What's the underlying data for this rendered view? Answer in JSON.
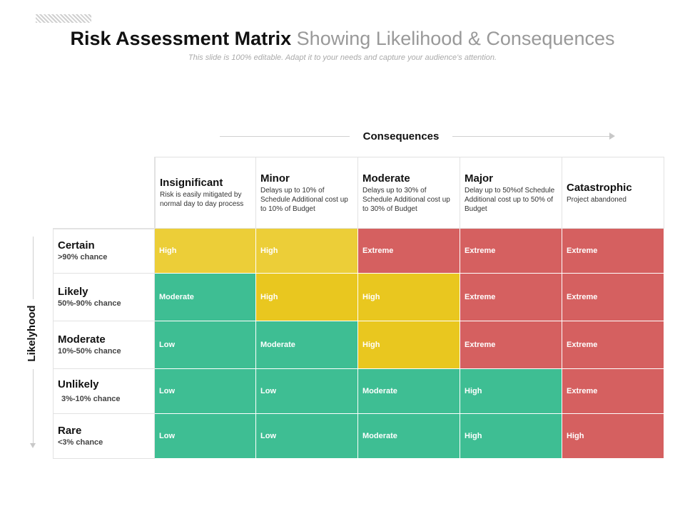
{
  "title": {
    "bold_part": "Risk Assessment Matrix",
    "light_part": "Showing Likelihood & Consequences"
  },
  "subtitle": "This slide is 100% editable. Adapt it to your needs and capture your audience's attention.",
  "axes": {
    "consequences_label": "Consequences",
    "likelihood_label": "Likelyhood"
  },
  "columns": [
    {
      "name": "Insignificant",
      "desc": "Risk is easily mitigated by normal day to day process"
    },
    {
      "name": "Minor",
      "desc": "Delays up to 10% of Schedule Additional cost up to 10% of Budget"
    },
    {
      "name": "Moderate",
      "desc": "Delays up to 30% of Schedule Additional cost up to 30% of Budget"
    },
    {
      "name": "Major",
      "desc": "Delay up to 50%of Schedule Additional cost up to 50% of Budget"
    },
    {
      "name": "Catastrophic",
      "desc": "Project abandoned"
    }
  ],
  "rows": [
    {
      "name": "Certain",
      "chance": ">90% chance",
      "cells": [
        "High",
        "High",
        "Extreme",
        "Extreme",
        "Extreme"
      ]
    },
    {
      "name": "Likely",
      "chance": "50%-90% chance",
      "cells": [
        "Moderate",
        "High",
        "High",
        "Extreme",
        "Extreme"
      ]
    },
    {
      "name": "Moderate",
      "chance": "10%-50% chance",
      "cells": [
        "Low",
        "Moderate",
        "High",
        "Extreme",
        "Extreme"
      ]
    },
    {
      "name": "Unlikely",
      "chance": "3%-10% chance",
      "cells": [
        "Low",
        "Low",
        "Moderate",
        "High",
        "Extreme"
      ]
    },
    {
      "name": "Rare",
      "chance": "<3% chance",
      "cells": [
        "Low",
        "Low",
        "Moderate",
        "High",
        "High"
      ]
    }
  ],
  "colors": {
    "yellow_light": "#ecce38",
    "yellow": "#e9c71f",
    "red": "#d56060",
    "green": "#3ebe93"
  }
}
